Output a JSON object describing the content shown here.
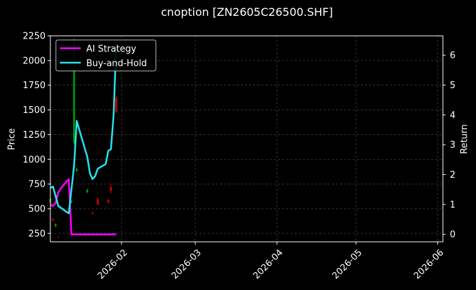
{
  "chart_data": {
    "type": "line",
    "title": "cnoption [ZN2605C26500.SHF]",
    "xlabel": "",
    "ylabel_left": "Price",
    "ylabel_right": "Return",
    "x_ticks": [
      "2026-02",
      "2026-03",
      "2026-04",
      "2026-05",
      "2026-06"
    ],
    "y_left_ticks": [
      "250",
      "500",
      "750",
      "1000",
      "1250",
      "1500",
      "1750",
      "2000",
      "2250"
    ],
    "y_right_ticks": [
      "0",
      "1",
      "2",
      "3",
      "4",
      "5",
      "6"
    ],
    "xlim": [
      "2026-01-05",
      "2026-06-03"
    ],
    "ylim_left": [
      165,
      2250
    ],
    "ylim_right": [
      -0.25,
      6.65
    ],
    "grid": true,
    "legend_position": "top-left",
    "colors": {
      "background": "#000000",
      "text": "#ffffff",
      "grid": "#555555",
      "up": "#00a800",
      "down": "#e00000",
      "ai": "#ff00ff",
      "bh": "#22e5ee"
    },
    "series": [
      {
        "name": "AI Strategy",
        "axis": "right",
        "color": "#ff00ff",
        "points": [
          [
            "2026-01-05",
            1.0
          ],
          [
            "2026-01-06",
            0.95
          ],
          [
            "2026-01-07",
            1.05
          ],
          [
            "2026-01-08",
            1.4
          ],
          [
            "2026-01-09",
            1.55
          ],
          [
            "2026-01-12",
            1.85
          ],
          [
            "2026-01-13",
            0.0
          ],
          [
            "2026-01-16",
            0.0
          ],
          [
            "2026-01-20",
            0.0
          ],
          [
            "2026-01-25",
            0.0
          ],
          [
            "2026-01-30",
            0.0
          ]
        ]
      },
      {
        "name": "Buy-and-Hold",
        "axis": "right",
        "color": "#22e5ee",
        "points": [
          [
            "2026-01-05",
            1.55
          ],
          [
            "2026-01-06",
            1.6
          ],
          [
            "2026-01-08",
            0.95
          ],
          [
            "2026-01-12",
            0.7
          ],
          [
            "2026-01-14",
            2.3
          ],
          [
            "2026-01-15",
            3.8
          ],
          [
            "2026-01-16",
            3.5
          ],
          [
            "2026-01-19",
            2.6
          ],
          [
            "2026-01-20",
            2.05
          ],
          [
            "2026-01-21",
            1.85
          ],
          [
            "2026-01-22",
            1.95
          ],
          [
            "2026-01-23",
            2.2
          ],
          [
            "2026-01-26",
            2.35
          ],
          [
            "2026-01-27",
            2.8
          ],
          [
            "2026-01-28",
            2.85
          ],
          [
            "2026-01-29",
            4.0
          ],
          [
            "2026-01-30",
            6.4
          ]
        ]
      }
    ],
    "candles": [
      {
        "date": "2026-01-05",
        "open": 560,
        "close": 600,
        "high": 610,
        "low": 550
      },
      {
        "date": "2026-01-06",
        "open": 395,
        "close": 380,
        "high": 400,
        "low": 375
      },
      {
        "date": "2026-01-07",
        "open": 320,
        "close": 345,
        "high": 350,
        "low": 318
      },
      {
        "date": "2026-01-08",
        "open": 218,
        "close": 212,
        "high": 220,
        "low": 210
      },
      {
        "date": "2026-01-13",
        "open": 560,
        "close": 580,
        "high": 585,
        "low": 555
      },
      {
        "date": "2026-01-14",
        "open": 1170,
        "close": 2200,
        "high": 2220,
        "low": 1150
      },
      {
        "date": "2026-01-15",
        "open": 880,
        "close": 905,
        "high": 910,
        "low": 875
      },
      {
        "date": "2026-01-19",
        "open": 665,
        "close": 690,
        "high": 700,
        "low": 660
      },
      {
        "date": "2026-01-21",
        "open": 460,
        "close": 448,
        "high": 465,
        "low": 445
      },
      {
        "date": "2026-01-23",
        "open": 600,
        "close": 540,
        "high": 610,
        "low": 535
      },
      {
        "date": "2026-01-27",
        "open": 590,
        "close": 560,
        "high": 600,
        "low": 555
      },
      {
        "date": "2026-01-28",
        "open": 720,
        "close": 680,
        "high": 750,
        "low": 650
      },
      {
        "date": "2026-01-30",
        "open": 1620,
        "close": 1480,
        "high": 1640,
        "low": 1470
      }
    ]
  }
}
